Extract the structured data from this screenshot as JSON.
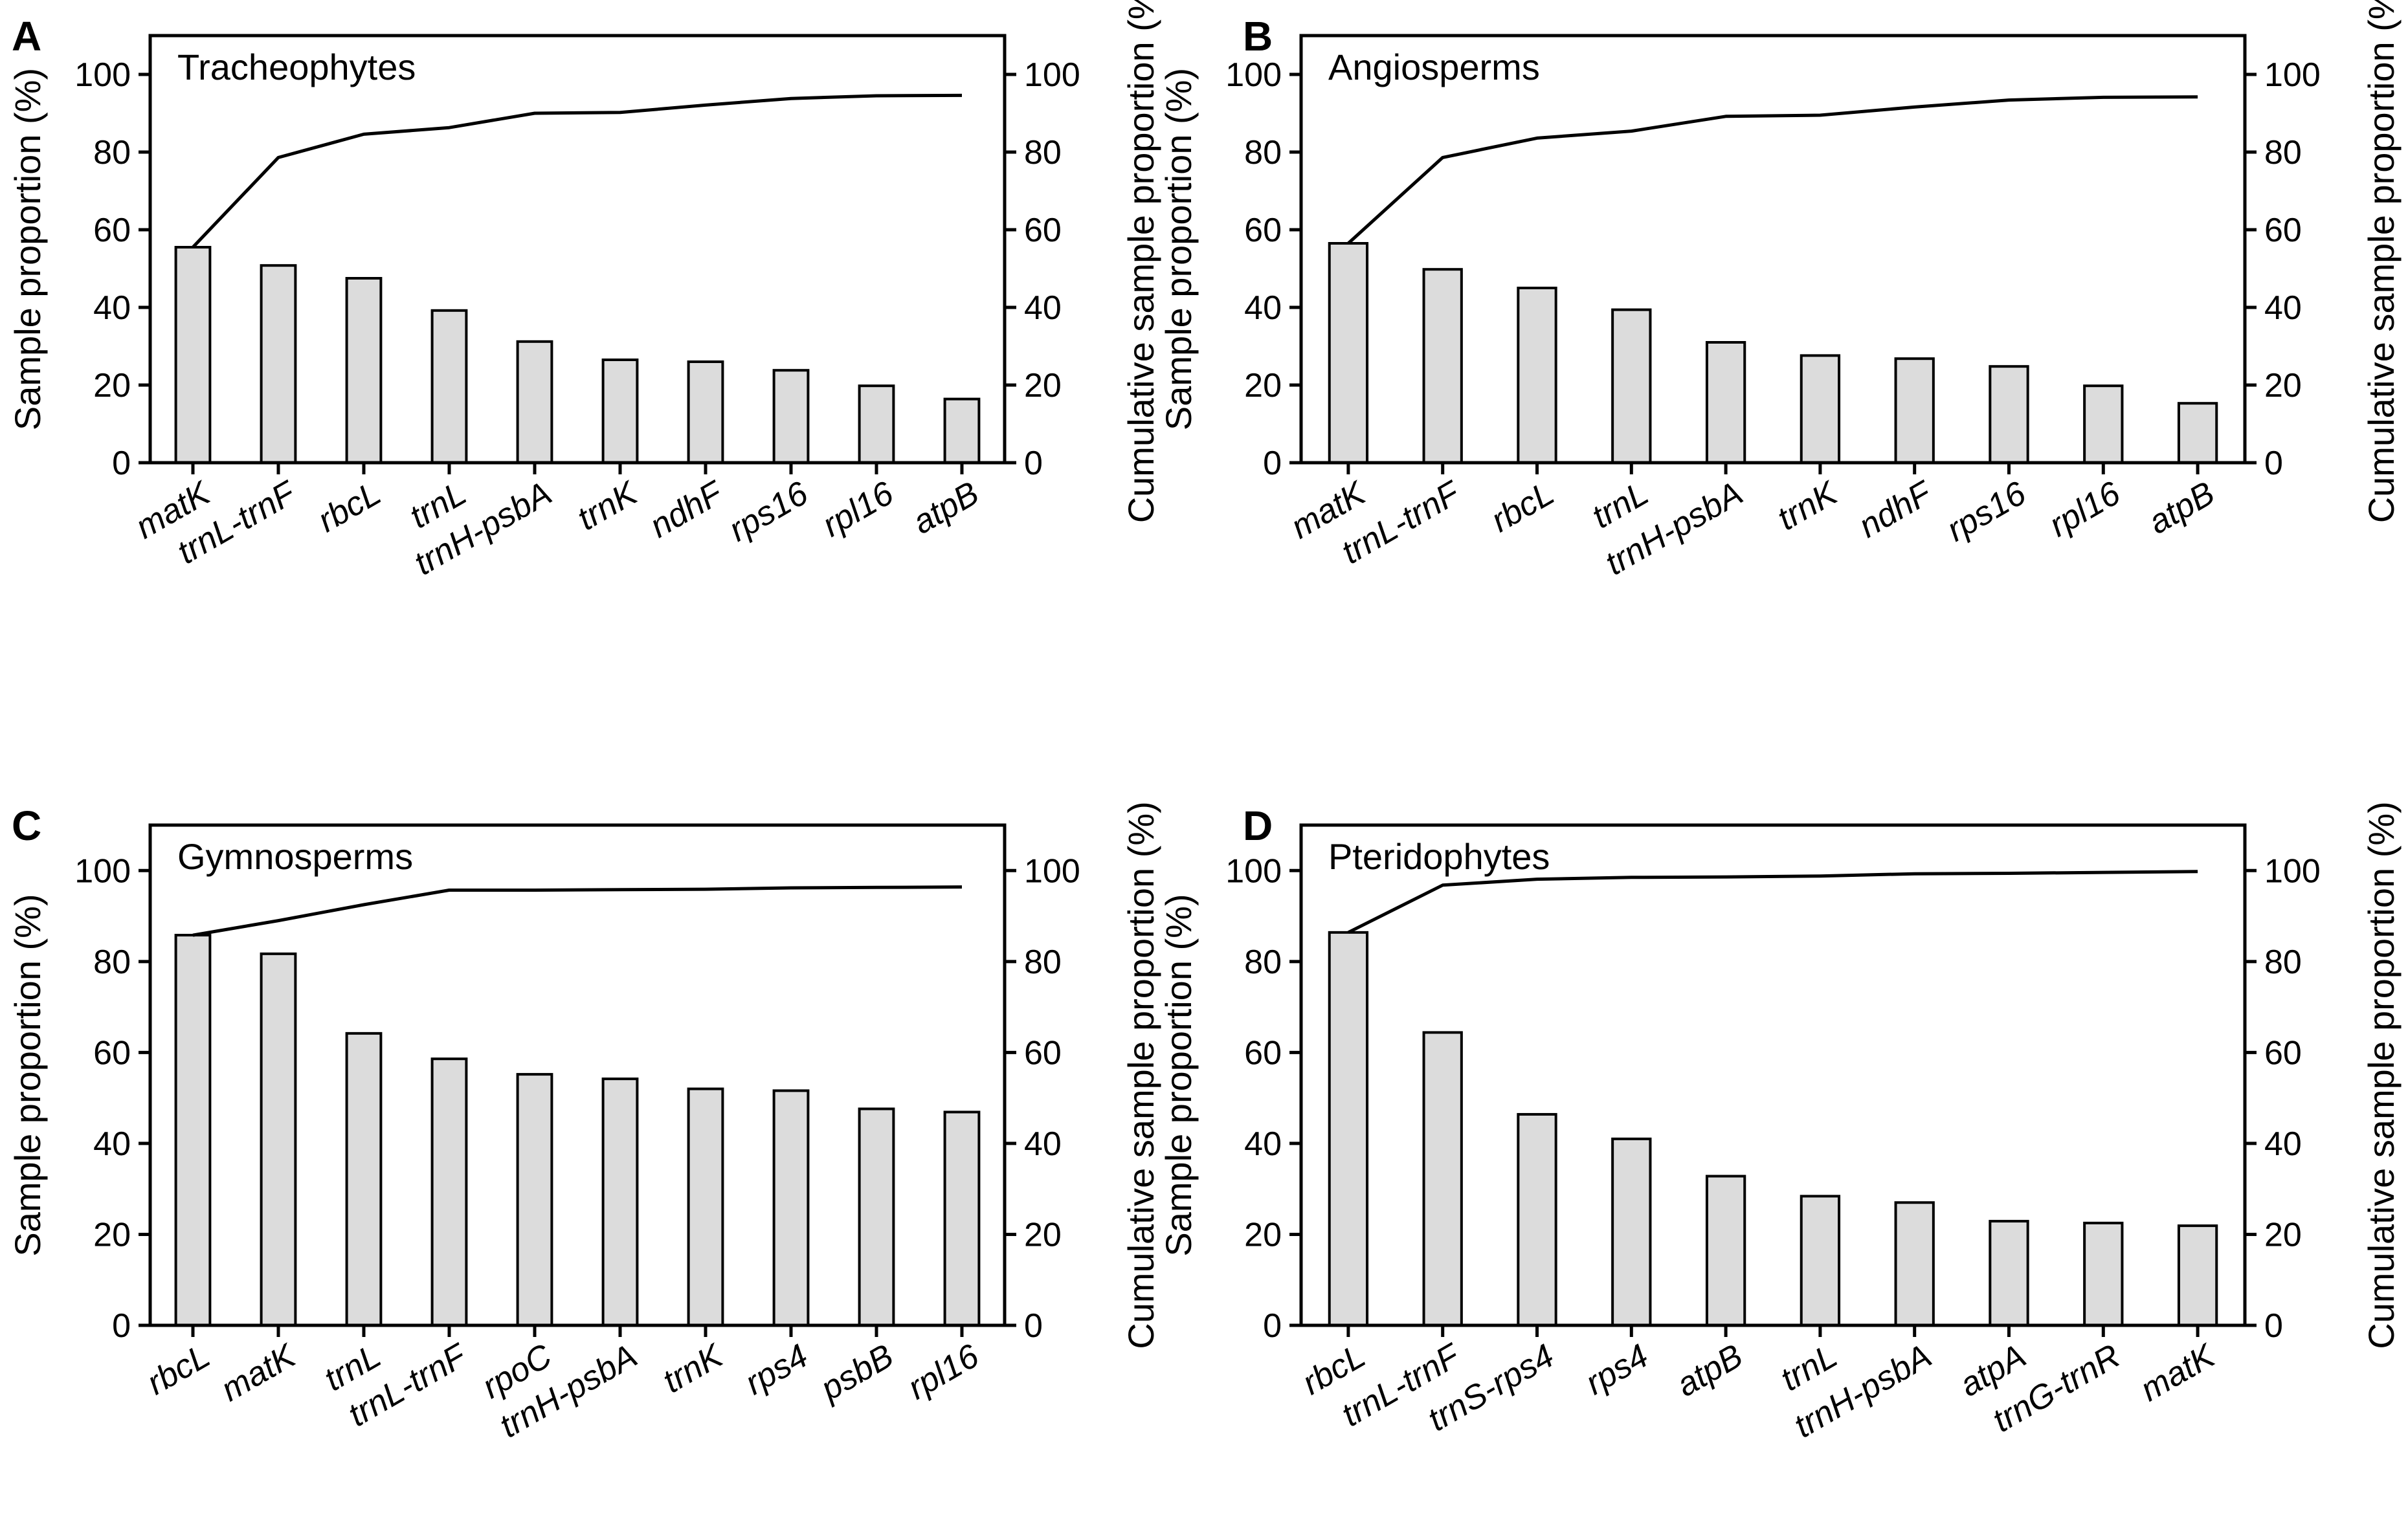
{
  "chart_data": [
    {
      "type": "bar",
      "panel_label": "A",
      "title": "Tracheophytes",
      "categories": [
        "matK",
        "trnL-trnF",
        "rbcL",
        "trnL",
        "trnH-psbA",
        "trnK",
        "ndhF",
        "rps16",
        "rpl16",
        "atpB"
      ],
      "series": [
        {
          "type": "bar",
          "axis": "left",
          "values": [
            55.5,
            50.8,
            47.5,
            39.2,
            31.2,
            26.5,
            26.0,
            23.8,
            19.8,
            16.4
          ]
        },
        {
          "type": "line",
          "axis": "right",
          "values": [
            55.5,
            78.6,
            84.6,
            86.3,
            90.0,
            90.2,
            92.1,
            93.8,
            94.5,
            94.6
          ]
        }
      ],
      "ylabel": "Sample proportion (%)",
      "ylabel_right": "Cumulative sample proportion (%)",
      "ylim": [
        0,
        110
      ],
      "yticks": [
        0,
        20,
        40,
        60,
        80,
        100
      ],
      "grid": false
    },
    {
      "type": "bar",
      "panel_label": "B",
      "title": "Angiosperms",
      "categories": [
        "matK",
        "trnL-trnF",
        "rbcL",
        "trnL",
        "trnH-psbA",
        "trnK",
        "ndhF",
        "rps16",
        "rpl16",
        "atpB"
      ],
      "series": [
        {
          "type": "bar",
          "axis": "left",
          "values": [
            56.5,
            49.8,
            45.0,
            39.4,
            31.0,
            27.6,
            26.8,
            24.8,
            19.8,
            15.3
          ]
        },
        {
          "type": "line",
          "axis": "right",
          "values": [
            56.5,
            78.6,
            83.6,
            85.4,
            89.2,
            89.5,
            91.6,
            93.4,
            94.1,
            94.2
          ]
        }
      ],
      "ylabel": "Sample proportion (%)",
      "ylabel_right": "Cumulative sample proportion (%)",
      "ylim": [
        0,
        110
      ],
      "yticks": [
        0,
        20,
        40,
        60,
        80,
        100
      ],
      "grid": false
    },
    {
      "type": "bar",
      "panel_label": "C",
      "title": "Gymnosperms",
      "categories": [
        "rbcL",
        "matK",
        "trnL",
        "trnL-trnF",
        "rpoC",
        "trnH-psbA",
        "trnK",
        "rps4",
        "psbB",
        "rpl16"
      ],
      "series": [
        {
          "type": "bar",
          "axis": "left",
          "values": [
            85.8,
            81.7,
            64.2,
            58.6,
            55.2,
            54.2,
            52.0,
            51.6,
            47.6,
            46.9
          ]
        },
        {
          "type": "line",
          "axis": "right",
          "values": [
            85.8,
            89.0,
            92.5,
            95.7,
            95.7,
            95.8,
            95.9,
            96.2,
            96.3,
            96.4
          ]
        }
      ],
      "ylabel": "Sample proportion (%)",
      "ylabel_right": "Cumulative sample proportion (%)",
      "ylim": [
        0,
        110
      ],
      "yticks": [
        0,
        20,
        40,
        60,
        80,
        100
      ],
      "grid": false
    },
    {
      "type": "bar",
      "panel_label": "D",
      "title": "Pteridophytes",
      "categories": [
        "rbcL",
        "trnL-trnF",
        "trnS-rps4",
        "rps4",
        "atpB",
        "trnL",
        "trnH-psbA",
        "atpA",
        "trnG-trnR",
        "matK"
      ],
      "series": [
        {
          "type": "bar",
          "axis": "left",
          "values": [
            86.4,
            64.4,
            46.4,
            41.0,
            32.8,
            28.4,
            27.0,
            22.9,
            22.5,
            21.9
          ]
        },
        {
          "type": "line",
          "axis": "right",
          "values": [
            86.4,
            96.8,
            98.1,
            98.5,
            98.6,
            98.8,
            99.3,
            99.4,
            99.6,
            99.8
          ]
        }
      ],
      "ylabel": "Sample proportion (%)",
      "ylabel_right": "Cumulative sample proportion (%)",
      "ylim": [
        0,
        110
      ],
      "yticks": [
        0,
        20,
        40,
        60,
        80,
        100
      ],
      "grid": false
    }
  ]
}
